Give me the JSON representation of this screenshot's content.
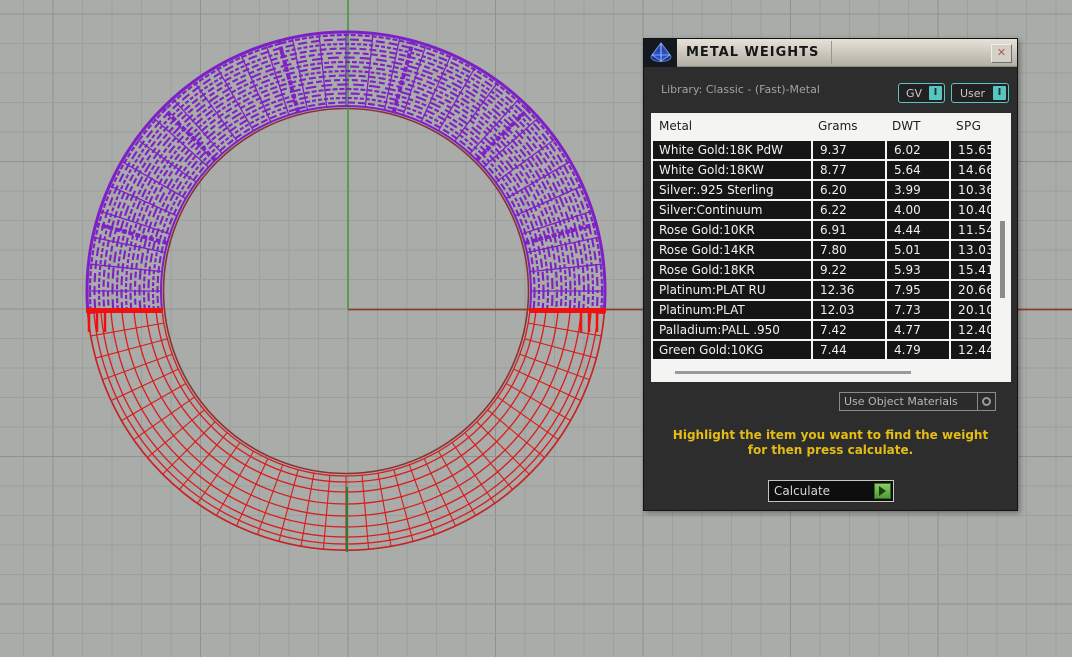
{
  "window": {
    "title": "METAL WEIGHTS",
    "close_glyph": "✕"
  },
  "library": {
    "label": "Library: Classic - (Fast)-Metal",
    "gv_button": {
      "label": "GV",
      "indicator": "I"
    },
    "user_button": {
      "label": "User",
      "indicator": "I"
    }
  },
  "table": {
    "columns": [
      "Metal",
      "Grams",
      "DWT",
      "SPG"
    ],
    "rows": [
      {
        "metal": "White Gold:18K PdW",
        "grams": "9.37",
        "dwt": "6.02",
        "spg": "15.65"
      },
      {
        "metal": "White Gold:18KW",
        "grams": "8.77",
        "dwt": "5.64",
        "spg": "14.66"
      },
      {
        "metal": "Silver:.925 Sterling",
        "grams": "6.20",
        "dwt": "3.99",
        "spg": "10.36"
      },
      {
        "metal": "Silver:Continuum",
        "grams": "6.22",
        "dwt": "4.00",
        "spg": "10.40"
      },
      {
        "metal": "Rose Gold:10KR",
        "grams": "6.91",
        "dwt": "4.44",
        "spg": "11.54"
      },
      {
        "metal": "Rose Gold:14KR",
        "grams": "7.80",
        "dwt": "5.01",
        "spg": "13.03"
      },
      {
        "metal": "Rose Gold:18KR",
        "grams": "9.22",
        "dwt": "5.93",
        "spg": "15.41"
      },
      {
        "metal": "Platinum:PLAT RU",
        "grams": "12.36",
        "dwt": "7.95",
        "spg": "20.66"
      },
      {
        "metal": "Platinum:PLAT",
        "grams": "12.03",
        "dwt": "7.73",
        "spg": "20.10"
      },
      {
        "metal": "Palladium:PALL .950",
        "grams": "7.42",
        "dwt": "4.77",
        "spg": "12.40"
      },
      {
        "metal": "Green Gold:10KG",
        "grams": "7.44",
        "dwt": "4.79",
        "spg": "12.44"
      }
    ]
  },
  "actions": {
    "use_object_materials": "Use Object Materials",
    "calculate": "Calculate"
  },
  "instruction": {
    "line1": "Highlight the item you want to find the weight",
    "line2": "for then press calculate."
  },
  "colors": {
    "accent_teal": "#57c6c1",
    "instruction_yellow": "#e4bd14",
    "wireframe_purple": "#7d20c6",
    "wireframe_red": "#d91c1c",
    "highlight_red": "#ef1010",
    "axis_green": "#3f9b3f",
    "axis_red": "#8e3b34",
    "calculate_green": "#4f9c33",
    "viewport_bg": "#a9aca9"
  }
}
